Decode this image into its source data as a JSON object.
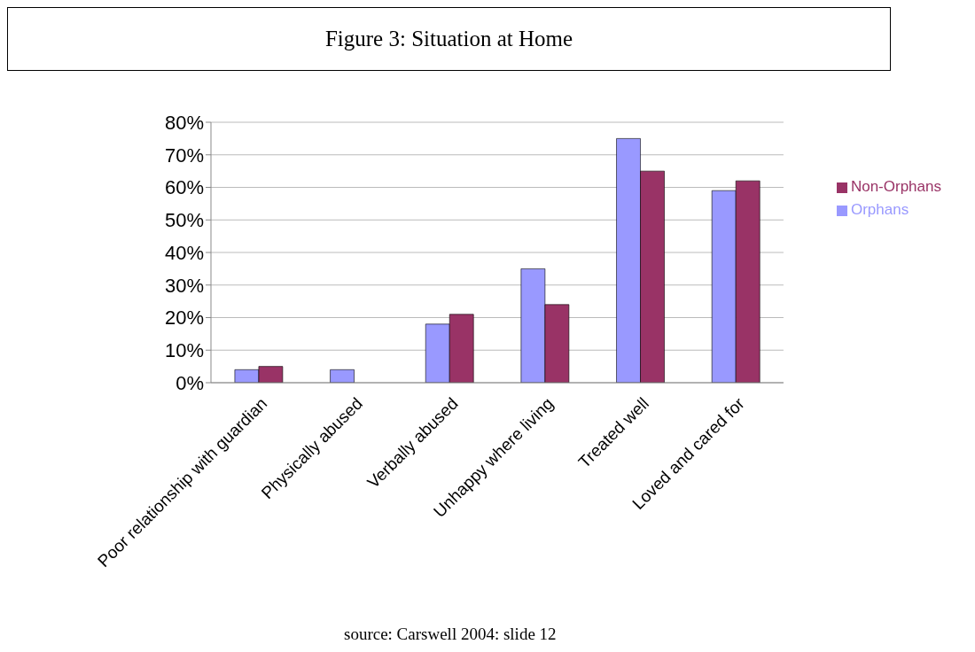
{
  "chart_data": {
    "type": "bar",
    "title": "Figure 3: Situation at Home",
    "categories": [
      "Poor relationship with guardian",
      "Physically abused",
      "Verbally abused",
      "Unhappy where living",
      "Treated well",
      "Loved and cared for"
    ],
    "series": [
      {
        "name": "Orphans",
        "color": "#9999ff",
        "values": [
          4,
          4,
          18,
          35,
          75,
          59
        ]
      },
      {
        "name": "Non-Orphans",
        "color": "#993366",
        "values": [
          5,
          0,
          21,
          24,
          65,
          62
        ]
      }
    ],
    "ylim": [
      0,
      80
    ],
    "yticks": [
      {
        "value": 0,
        "label": "0%"
      },
      {
        "value": 10,
        "label": "10%"
      },
      {
        "value": 20,
        "label": "20%"
      },
      {
        "value": 30,
        "label": "30%"
      },
      {
        "value": 40,
        "label": "40%"
      },
      {
        "value": 50,
        "label": "50%"
      },
      {
        "value": 60,
        "label": "60%"
      },
      {
        "value": 70,
        "label": "70%"
      },
      {
        "value": 80,
        "label": "80%"
      }
    ],
    "grid": "y",
    "legend": "right",
    "annotations": [
      "source: Carswell 2004: slide 12"
    ]
  }
}
